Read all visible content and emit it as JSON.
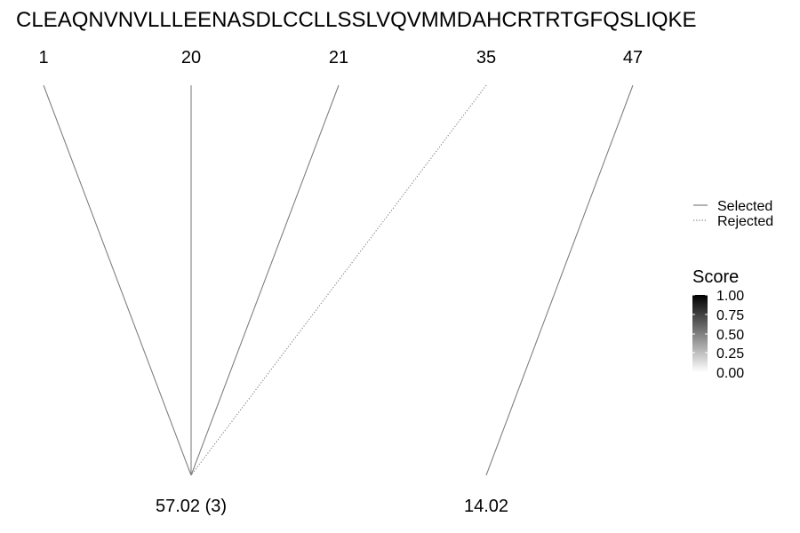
{
  "sequence": "CLEAQNVNVLLLEENASDLCCLLSSLVQVMMDAHCRTRTGFQSLIQKE",
  "positions": [
    {
      "label": "1"
    },
    {
      "label": "20"
    },
    {
      "label": "21"
    },
    {
      "label": "35"
    },
    {
      "label": "47"
    }
  ],
  "masses": [
    {
      "label": "57.02 (3)"
    },
    {
      "label": "14.02"
    }
  ],
  "connections": [
    {
      "from": 0,
      "to": 0,
      "status": "selected",
      "score": 1.0
    },
    {
      "from": 1,
      "to": 0,
      "status": "selected",
      "score": 1.0
    },
    {
      "from": 2,
      "to": 0,
      "status": "selected",
      "score": 1.0
    },
    {
      "from": 3,
      "to": 0,
      "status": "rejected",
      "score": 1.0
    },
    {
      "from": 4,
      "to": 1,
      "status": "selected",
      "score": 1.0
    }
  ],
  "legend": {
    "items": [
      {
        "label": "Selected",
        "style": "solid"
      },
      {
        "label": "Rejected",
        "style": "dotted"
      }
    ]
  },
  "score_scale": {
    "title": "Score",
    "ticks": [
      "1.00",
      "0.75",
      "0.50",
      "0.25",
      "0.00"
    ],
    "color_high": "#000000",
    "color_low": "#ffffff"
  },
  "colors": {
    "line": "#808080"
  }
}
